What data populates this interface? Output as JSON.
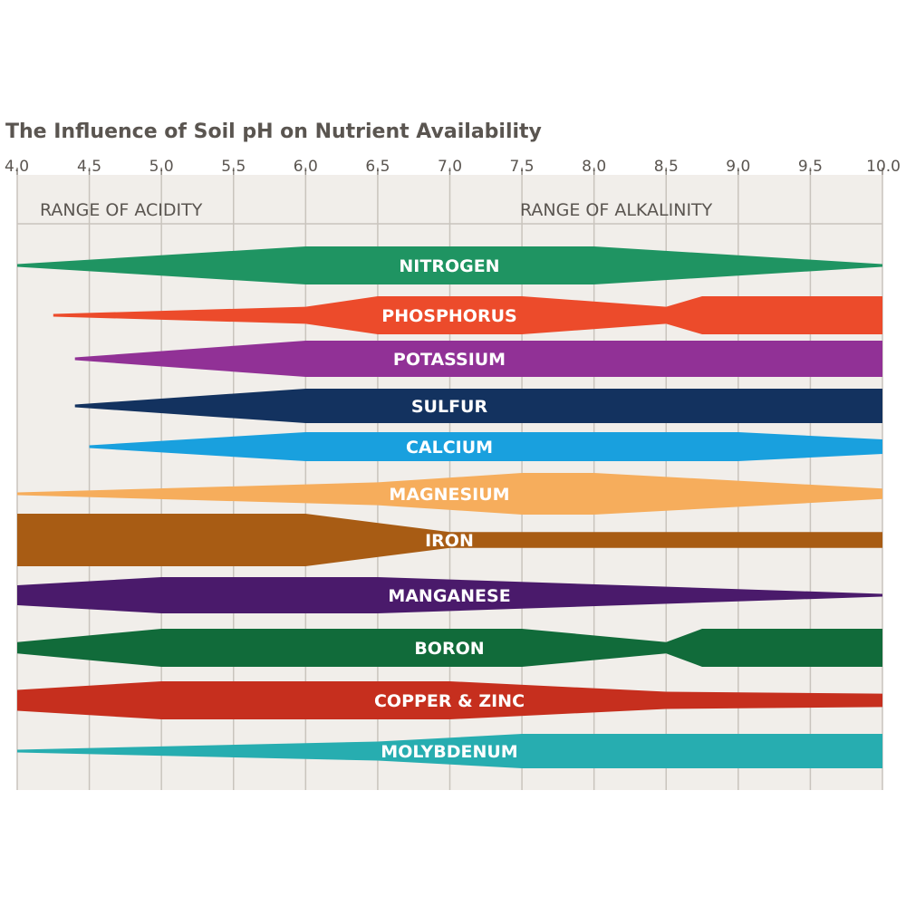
{
  "chart_data": {
    "type": "area",
    "title": "The Influence of Soil pH on Nutrient Availability",
    "x_axis": {
      "min": 4.0,
      "max": 10.0,
      "tick_labels": [
        "4.0",
        "4.5",
        "5.0",
        "5.5",
        "6.0",
        "6.5",
        "7.0",
        "7.5",
        "8.0",
        "8.5",
        "9.0",
        "9.5",
        "10.0"
      ]
    },
    "range_labels": {
      "acidity": "RANGE OF ACIDITY",
      "alkalinity": "RANGE OF ALKALINITY"
    },
    "grid": true,
    "background_color": "#f1eeea",
    "series": [
      {
        "name": "NITROGEN",
        "color": "#1f9462",
        "profile": [
          [
            4.0,
            0.0
          ],
          [
            6.0,
            1.0
          ],
          [
            8.0,
            1.0
          ],
          [
            10.0,
            0.0
          ]
        ]
      },
      {
        "name": "PHOSPHORUS",
        "color": "#ec4b2b",
        "profile": [
          [
            4.25,
            0.0
          ],
          [
            6.0,
            0.45
          ],
          [
            6.5,
            1.0
          ],
          [
            7.5,
            1.0
          ],
          [
            8.5,
            0.45
          ],
          [
            8.75,
            1.0
          ],
          [
            10.0,
            1.0
          ]
        ]
      },
      {
        "name": "POTASSIUM",
        "color": "#913196",
        "profile": [
          [
            4.4,
            0.0
          ],
          [
            6.0,
            1.0
          ],
          [
            10.0,
            1.0
          ]
        ]
      },
      {
        "name": "SULFUR",
        "color": "#13325f",
        "profile": [
          [
            4.4,
            0.0
          ],
          [
            6.0,
            1.0
          ],
          [
            10.0,
            1.0
          ]
        ]
      },
      {
        "name": "CALCIUM",
        "color": "#19a0de",
        "profile": [
          [
            4.5,
            0.0
          ],
          [
            6.0,
            1.0
          ],
          [
            9.0,
            1.0
          ],
          [
            10.0,
            0.5
          ]
        ]
      },
      {
        "name": "MAGNESIUM",
        "color": "#f6ad5c",
        "profile": [
          [
            4.0,
            0.0
          ],
          [
            6.5,
            0.55
          ],
          [
            7.5,
            1.0
          ],
          [
            8.0,
            1.0
          ],
          [
            10.0,
            0.25
          ]
        ]
      },
      {
        "name": "IRON",
        "color": "#a85c14",
        "profile": [
          [
            4.0,
            1.0
          ],
          [
            6.0,
            1.0
          ],
          [
            7.0,
            0.3
          ],
          [
            10.0,
            0.3
          ]
        ]
      },
      {
        "name": "MANGANESE",
        "color": "#4a1a6b",
        "profile": [
          [
            4.0,
            0.55
          ],
          [
            5.0,
            1.0
          ],
          [
            6.5,
            1.0
          ],
          [
            10.0,
            0.0
          ]
        ]
      },
      {
        "name": "BORON",
        "color": "#116b3a",
        "profile": [
          [
            4.0,
            0.3
          ],
          [
            5.0,
            1.0
          ],
          [
            7.5,
            1.0
          ],
          [
            8.5,
            0.3
          ],
          [
            8.75,
            1.0
          ],
          [
            10.0,
            1.0
          ]
        ]
      },
      {
        "name": "COPPER & ZINC",
        "color": "#c62f1e",
        "profile": [
          [
            4.0,
            0.55
          ],
          [
            5.0,
            1.0
          ],
          [
            7.0,
            1.0
          ],
          [
            8.5,
            0.45
          ],
          [
            10.0,
            0.35
          ]
        ]
      },
      {
        "name": "MOLYBDENUM",
        "color": "#27adb0",
        "profile": [
          [
            4.0,
            0.0
          ],
          [
            6.5,
            0.55
          ],
          [
            7.5,
            1.0
          ],
          [
            10.0,
            1.0
          ]
        ]
      }
    ]
  }
}
